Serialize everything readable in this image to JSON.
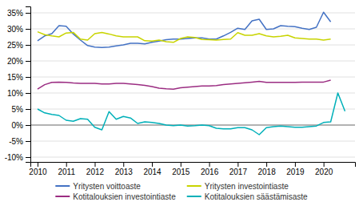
{
  "chart_data": {
    "type": "line",
    "x": [
      2010,
      2010.25,
      2010.5,
      2010.75,
      2011,
      2011.25,
      2011.5,
      2011.75,
      2012,
      2012.25,
      2012.5,
      2012.75,
      2013,
      2013.25,
      2013.5,
      2013.75,
      2014,
      2014.25,
      2014.5,
      2014.75,
      2015,
      2015.25,
      2015.5,
      2015.75,
      2016,
      2016.25,
      2016.5,
      2016.75,
      2017,
      2017.25,
      2017.5,
      2017.75,
      2018,
      2018.25,
      2018.5,
      2018.75,
      2019,
      2019.25,
      2019.5,
      2019.75,
      2020,
      2020.25,
      2020.5,
      2020.75
    ],
    "series": [
      {
        "name": "Yritysten voittoaste",
        "color": "#4472c4",
        "values": [
          0.263,
          0.278,
          0.285,
          0.31,
          0.308,
          0.284,
          0.265,
          0.248,
          0.243,
          0.242,
          0.243,
          0.247,
          0.25,
          0.255,
          0.255,
          0.253,
          0.258,
          0.262,
          0.266,
          0.268,
          0.268,
          0.27,
          0.272,
          0.272,
          0.268,
          0.268,
          0.278,
          0.289,
          0.302,
          0.298,
          0.325,
          0.33,
          0.298,
          0.3,
          0.31,
          0.308,
          0.307,
          0.302,
          0.298,
          0.305,
          0.352,
          0.322,
          null,
          null
        ]
      },
      {
        "name": "Kotitalouksien investointiaste",
        "color": "#9b2d82",
        "values": [
          0.112,
          0.126,
          0.133,
          0.134,
          0.133,
          0.131,
          0.13,
          0.13,
          0.13,
          0.128,
          0.128,
          0.13,
          0.13,
          0.128,
          0.126,
          0.124,
          0.12,
          0.115,
          0.113,
          0.112,
          0.116,
          0.118,
          0.12,
          0.122,
          0.122,
          0.123,
          0.126,
          0.128,
          0.13,
          0.132,
          0.134,
          0.136,
          0.133,
          0.133,
          0.133,
          0.133,
          0.133,
          0.134,
          0.134,
          0.134,
          0.134,
          0.14,
          null,
          null
        ]
      },
      {
        "name": "Yritysten investointiaste",
        "color": "#c8d400",
        "values": [
          0.291,
          0.282,
          0.278,
          0.275,
          0.287,
          0.289,
          0.268,
          0.265,
          0.285,
          0.289,
          0.284,
          0.278,
          0.275,
          0.275,
          0.275,
          0.263,
          0.262,
          0.265,
          0.26,
          0.258,
          0.27,
          0.275,
          0.273,
          0.267,
          0.266,
          0.265,
          0.267,
          0.268,
          0.288,
          0.28,
          0.28,
          0.285,
          0.278,
          0.275,
          0.277,
          0.28,
          0.272,
          0.27,
          0.268,
          0.268,
          0.265,
          0.268,
          null,
          null
        ]
      },
      {
        "name": "Kotitalouksien säästämisaste",
        "color": "#00b0b9",
        "values": [
          0.05,
          0.038,
          0.033,
          0.03,
          0.015,
          0.012,
          0.02,
          0.018,
          -0.007,
          -0.015,
          0.042,
          0.018,
          0.027,
          0.022,
          0.005,
          0.01,
          0.008,
          0.005,
          0.0,
          -0.002,
          0.0,
          -0.003,
          -0.002,
          0.0,
          -0.002,
          -0.01,
          -0.012,
          -0.012,
          -0.008,
          -0.008,
          -0.015,
          -0.03,
          -0.008,
          -0.005,
          -0.003,
          -0.005,
          -0.007,
          -0.007,
          -0.005,
          -0.003,
          0.008,
          0.01,
          0.1,
          0.043
        ]
      }
    ],
    "xlim": [
      2009.75,
      2021.1
    ],
    "xticks": [
      2010,
      2011,
      2012,
      2013,
      2014,
      2015,
      2016,
      2017,
      2018,
      2019,
      2020
    ],
    "ylim": [
      -0.115,
      0.37
    ],
    "yticks": [
      {
        "value": -0.1,
        "label": "-10%"
      },
      {
        "value": -0.05,
        "label": "-5%"
      },
      {
        "value": 0.0,
        "label": "0%"
      },
      {
        "value": 0.05,
        "label": "5%"
      },
      {
        "value": 0.1,
        "label": "10%"
      },
      {
        "value": 0.15,
        "label": "15%"
      },
      {
        "value": 0.2,
        "label": "20%"
      },
      {
        "value": 0.25,
        "label": "25%"
      },
      {
        "value": 0.3,
        "label": "30%"
      },
      {
        "value": 0.35,
        "label": "35%"
      }
    ],
    "grid": true,
    "legend": "bottom"
  }
}
